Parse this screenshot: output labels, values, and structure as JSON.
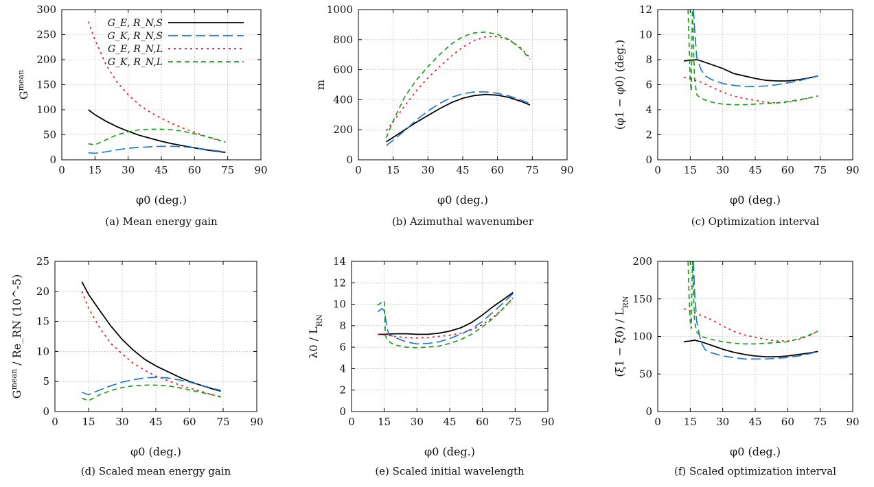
{
  "chart_data": [
    {
      "type": "line",
      "caption": "(a) Mean energy gain",
      "xlabel": "φ0 (deg.)",
      "ylabel": "G^mean",
      "xlim": [
        0,
        90
      ],
      "ylim": [
        0,
        300
      ],
      "xticks": [
        "0",
        "15",
        "30",
        "45",
        "60",
        "75",
        "90"
      ],
      "yticks": [
        "0",
        "50",
        "100",
        "150",
        "200",
        "250",
        "300"
      ],
      "grid": true,
      "legend": {
        "placement": "top-right",
        "entries": [
          "G_E, R_N,S",
          "G_K, R_N,S",
          "G_E, R_N,L",
          "G_K, R_N,L"
        ]
      },
      "series": [
        {
          "name": "G_E, R_N,S",
          "color": "#000000",
          "dash": "solid",
          "x": [
            12,
            15,
            20,
            25,
            30,
            35,
            40,
            45,
            50,
            55,
            60,
            65,
            70,
            74
          ],
          "y": [
            100,
            90,
            77,
            66,
            57,
            49,
            43,
            37,
            32,
            28,
            24,
            20,
            17,
            15
          ]
        },
        {
          "name": "G_K, R_N,S",
          "color": "#1f77d4",
          "dash": "long",
          "x": [
            12,
            15,
            20,
            25,
            30,
            35,
            40,
            45,
            50,
            55,
            60,
            65,
            70,
            74
          ],
          "y": [
            14,
            13,
            16,
            20,
            23,
            25,
            26,
            27,
            27,
            26,
            24,
            21,
            18,
            16
          ]
        },
        {
          "name": "G_E, R_N,L",
          "color": "#e41a1c",
          "dash": "dot",
          "x": [
            12,
            15,
            20,
            25,
            30,
            35,
            40,
            45,
            50,
            55,
            60,
            65,
            70,
            74
          ],
          "y": [
            276,
            240,
            190,
            155,
            130,
            110,
            95,
            83,
            72,
            63,
            55,
            47,
            40,
            36
          ]
        },
        {
          "name": "G_K, R_N,L",
          "color": "#1a9e1a",
          "dash": "short",
          "x": [
            12,
            15,
            20,
            25,
            30,
            35,
            40,
            45,
            50,
            55,
            60,
            65,
            70,
            74
          ],
          "y": [
            32,
            30,
            40,
            50,
            56,
            60,
            61,
            61,
            60,
            57,
            52,
            47,
            41,
            35
          ]
        }
      ]
    },
    {
      "type": "line",
      "caption": "(b) Azimuthal wavenumber",
      "xlabel": "φ0 (deg.)",
      "ylabel": "m",
      "xlim": [
        0,
        90
      ],
      "ylim": [
        0,
        1000
      ],
      "xticks": [
        "0",
        "15",
        "30",
        "45",
        "60",
        "75",
        "90"
      ],
      "yticks": [
        "0",
        "200",
        "400",
        "600",
        "800",
        "1000"
      ],
      "grid": true,
      "series": [
        {
          "color": "#000000",
          "dash": "solid",
          "x": [
            12,
            15,
            20,
            25,
            30,
            35,
            40,
            45,
            50,
            55,
            60,
            65,
            70,
            74
          ],
          "y": [
            120,
            150,
            200,
            250,
            295,
            340,
            380,
            410,
            428,
            435,
            430,
            415,
            390,
            365
          ]
        },
        {
          "color": "#1f77d4",
          "dash": "long",
          "x": [
            12,
            15,
            20,
            25,
            30,
            35,
            40,
            45,
            50,
            55,
            60,
            65,
            70,
            74
          ],
          "y": [
            95,
            130,
            195,
            265,
            325,
            375,
            415,
            440,
            452,
            452,
            443,
            425,
            400,
            375
          ]
        },
        {
          "color": "#e41a1c",
          "dash": "dot",
          "x": [
            12,
            15,
            20,
            25,
            30,
            35,
            40,
            45,
            50,
            55,
            60,
            65,
            70,
            74
          ],
          "y": [
            195,
            255,
            360,
            460,
            545,
            620,
            690,
            750,
            795,
            820,
            820,
            800,
            745,
            680
          ]
        },
        {
          "color": "#1a9e1a",
          "dash": "short",
          "x": [
            12,
            15,
            20,
            25,
            30,
            35,
            40,
            45,
            50,
            55,
            60,
            65,
            70,
            74
          ],
          "y": [
            145,
            260,
            420,
            530,
            620,
            700,
            770,
            820,
            845,
            850,
            835,
            800,
            740,
            670
          ]
        }
      ]
    },
    {
      "type": "line",
      "caption": "(c) Optimization interval",
      "xlabel": "φ0 (deg.)",
      "ylabel": "(φ1 − φ0) (deg.)",
      "xlim": [
        0,
        90
      ],
      "ylim": [
        0,
        12
      ],
      "xticks": [
        "0",
        "15",
        "30",
        "45",
        "60",
        "75",
        "90"
      ],
      "yticks": [
        "0",
        "2",
        "4",
        "6",
        "8",
        "10",
        "12"
      ],
      "grid": true,
      "series": [
        {
          "color": "#000000",
          "dash": "solid",
          "x": [
            12,
            15,
            18,
            20,
            25,
            30,
            35,
            40,
            45,
            50,
            55,
            60,
            65,
            70,
            74
          ],
          "y": [
            7.9,
            7.95,
            8.0,
            7.9,
            7.6,
            7.3,
            6.9,
            6.7,
            6.5,
            6.35,
            6.3,
            6.3,
            6.4,
            6.55,
            6.7
          ]
        },
        {
          "color": "#1f77d4",
          "dash": "long",
          "x": [
            16.5,
            17,
            18,
            20,
            22,
            25,
            30,
            35,
            40,
            45,
            50,
            55,
            60,
            65,
            70,
            74
          ],
          "y": [
            12,
            10.5,
            8.2,
            7.2,
            6.7,
            6.4,
            6.1,
            5.95,
            5.85,
            5.85,
            5.9,
            6.0,
            6.15,
            6.3,
            6.55,
            6.7
          ]
        },
        {
          "color": "#e41a1c",
          "dash": "dot",
          "x": [
            12,
            15,
            20,
            25,
            30,
            35,
            40,
            45,
            50,
            55,
            60,
            65,
            70,
            74
          ],
          "y": [
            6.6,
            6.5,
            6.2,
            5.8,
            5.4,
            5.1,
            4.9,
            4.75,
            4.6,
            4.55,
            4.6,
            4.75,
            4.95,
            5.1
          ]
        },
        {
          "color": "#1a9e1a",
          "dash": "short",
          "x": [
            14,
            14.5,
            15,
            15.5,
            16,
            17,
            18,
            20,
            25,
            30,
            35,
            40,
            45,
            50,
            55,
            60,
            65,
            70,
            74
          ],
          "y": [
            12,
            9,
            6.5,
            5.5,
            12,
            6.5,
            5.2,
            4.9,
            4.6,
            4.45,
            4.4,
            4.4,
            4.45,
            4.5,
            4.55,
            4.65,
            4.8,
            4.95,
            5.1
          ]
        }
      ]
    },
    {
      "type": "line",
      "caption": "(d) Scaled mean energy gain",
      "xlabel": "φ0 (deg.)",
      "ylabel": "G^mean / Re_RN (10^-5)",
      "xlim": [
        0,
        90
      ],
      "ylim": [
        0,
        25
      ],
      "xticks": [
        "0",
        "15",
        "30",
        "45",
        "60",
        "75",
        "90"
      ],
      "yticks": [
        "0",
        "5",
        "10",
        "15",
        "20",
        "25"
      ],
      "grid": true,
      "series": [
        {
          "color": "#000000",
          "dash": "solid",
          "x": [
            12,
            15,
            20,
            25,
            30,
            35,
            40,
            45,
            50,
            55,
            60,
            65,
            70,
            74
          ],
          "y": [
            21.6,
            19.5,
            16.8,
            14.2,
            12.0,
            10.2,
            8.7,
            7.6,
            6.7,
            5.8,
            5.0,
            4.4,
            3.8,
            3.4
          ]
        },
        {
          "color": "#1f77d4",
          "dash": "long",
          "x": [
            12,
            15,
            20,
            25,
            30,
            35,
            40,
            45,
            50,
            55,
            60,
            65,
            70,
            74
          ],
          "y": [
            3.2,
            2.8,
            3.6,
            4.3,
            4.9,
            5.3,
            5.6,
            5.7,
            5.6,
            5.3,
            4.9,
            4.4,
            3.9,
            3.5
          ]
        },
        {
          "color": "#e41a1c",
          "dash": "dot",
          "x": [
            12,
            15,
            20,
            25,
            30,
            35,
            40,
            45,
            50,
            55,
            60,
            65,
            70,
            74
          ],
          "y": [
            20,
            17.2,
            13.9,
            11.3,
            9.6,
            8.0,
            6.9,
            5.9,
            5.2,
            4.5,
            3.9,
            3.4,
            2.8,
            2.5
          ]
        },
        {
          "color": "#1a9e1a",
          "dash": "short",
          "x": [
            12,
            15,
            20,
            25,
            30,
            35,
            40,
            45,
            50,
            55,
            60,
            65,
            70,
            74
          ],
          "y": [
            2.2,
            1.8,
            2.8,
            3.5,
            4.0,
            4.3,
            4.4,
            4.4,
            4.3,
            4.0,
            3.6,
            3.2,
            2.8,
            2.4
          ]
        }
      ]
    },
    {
      "type": "line",
      "caption": "(e) Scaled initial wavelength",
      "xlabel": "φ0 (deg.)",
      "ylabel": "λ0 / L_RN",
      "xlim": [
        0,
        90
      ],
      "ylim": [
        0,
        14
      ],
      "xticks": [
        "0",
        "15",
        "30",
        "45",
        "60",
        "75",
        "90"
      ],
      "yticks": [
        "0",
        "2",
        "4",
        "6",
        "8",
        "10",
        "12",
        "14"
      ],
      "grid": true,
      "series": [
        {
          "color": "#000000",
          "dash": "solid",
          "x": [
            12,
            15,
            20,
            25,
            30,
            35,
            40,
            45,
            50,
            55,
            60,
            65,
            70,
            74
          ],
          "y": [
            7.2,
            7.2,
            7.25,
            7.25,
            7.2,
            7.2,
            7.3,
            7.5,
            7.8,
            8.3,
            9.0,
            9.8,
            10.5,
            11.1
          ]
        },
        {
          "color": "#1f77d4",
          "dash": "long",
          "x": [
            12,
            14,
            15,
            16,
            17,
            20,
            25,
            30,
            35,
            40,
            45,
            50,
            55,
            60,
            65,
            70,
            74
          ],
          "y": [
            9.3,
            9.6,
            9.4,
            8.2,
            7.2,
            6.9,
            6.5,
            6.3,
            6.35,
            6.5,
            6.8,
            7.2,
            7.7,
            8.4,
            9.3,
            10.2,
            11.0
          ]
        },
        {
          "color": "#e41a1c",
          "dash": "dot",
          "x": [
            12,
            15,
            20,
            25,
            30,
            35,
            40,
            45,
            50,
            55,
            60,
            65,
            70,
            74
          ],
          "y": [
            7.2,
            7.15,
            7.0,
            6.9,
            6.85,
            6.9,
            7.0,
            7.1,
            7.3,
            7.6,
            8.1,
            8.8,
            9.7,
            10.6
          ]
        },
        {
          "color": "#1a9e1a",
          "dash": "short",
          "x": [
            12,
            14,
            15,
            15.5,
            16,
            18,
            20,
            25,
            30,
            35,
            40,
            45,
            50,
            55,
            60,
            65,
            70,
            74
          ],
          "y": [
            9.9,
            10.2,
            10.3,
            7.2,
            6.8,
            6.4,
            6.2,
            6.0,
            5.95,
            6.0,
            6.1,
            6.35,
            6.7,
            7.2,
            7.9,
            8.7,
            9.7,
            10.6
          ]
        }
      ]
    },
    {
      "type": "line",
      "caption": "(f) Scaled optimization interval",
      "xlabel": "φ0 (deg.)",
      "ylabel": "(ξ1 − ξ0) / L_RN",
      "xlim": [
        0,
        90
      ],
      "ylim": [
        0,
        200
      ],
      "xticks": [
        "0",
        "15",
        "30",
        "45",
        "60",
        "75",
        "90"
      ],
      "yticks": [
        "0",
        "50",
        "100",
        "150",
        "200"
      ],
      "grid": true,
      "series": [
        {
          "color": "#000000",
          "dash": "solid",
          "x": [
            12,
            15,
            17,
            20,
            25,
            30,
            35,
            40,
            45,
            50,
            55,
            60,
            65,
            70,
            74
          ],
          "y": [
            93,
            94,
            95,
            93,
            88,
            83,
            79,
            76,
            74,
            73,
            73,
            74,
            76,
            78,
            80
          ]
        },
        {
          "color": "#1f77d4",
          "dash": "long",
          "x": [
            16.5,
            17,
            18,
            20,
            22,
            25,
            30,
            35,
            40,
            45,
            50,
            55,
            60,
            65,
            70,
            74
          ],
          "y": [
            200,
            160,
            120,
            92,
            82,
            78,
            74,
            72,
            70,
            70,
            70,
            71,
            72,
            74,
            77,
            80
          ]
        },
        {
          "color": "#e41a1c",
          "dash": "dot",
          "x": [
            12,
            15,
            20,
            25,
            30,
            35,
            40,
            45,
            50,
            55,
            60,
            65,
            70,
            74
          ],
          "y": [
            137,
            134,
            128,
            122,
            114,
            107,
            102,
            99,
            96,
            94,
            94,
            96,
            101,
            107
          ]
        },
        {
          "color": "#1a9e1a",
          "dash": "short",
          "x": [
            14,
            14.5,
            15,
            15.5,
            16,
            17,
            18,
            20,
            25,
            30,
            35,
            40,
            45,
            50,
            55,
            60,
            65,
            70,
            74
          ],
          "y": [
            200,
            150,
            120,
            110,
            200,
            120,
            106,
            100,
            96,
            93,
            91,
            90,
            90,
            91,
            92,
            93,
            97,
            102,
            107
          ]
        }
      ]
    }
  ]
}
